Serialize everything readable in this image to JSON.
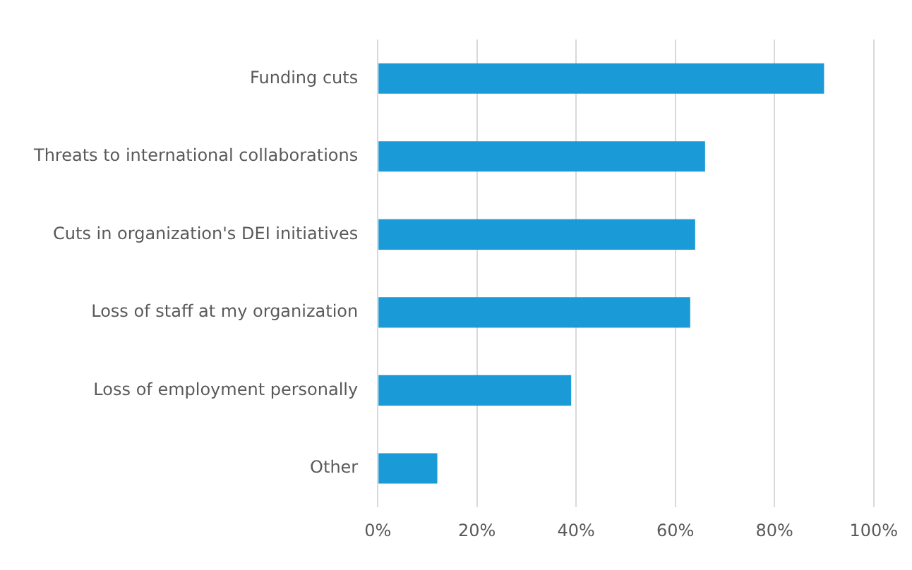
{
  "chart_data": {
    "type": "bar",
    "orientation": "horizontal",
    "categories": [
      "Funding cuts",
      "Threats to international collaborations",
      "Cuts in organization's DEI initiatives",
      "Loss of staff at my organization",
      "Loss of employment personally",
      "Other"
    ],
    "values": [
      90,
      66,
      64,
      63,
      39,
      12
    ],
    "color": "#1a9ad6",
    "xlim": [
      0,
      100
    ],
    "xticks": [
      {
        "value": 0,
        "label": "0%"
      },
      {
        "value": 20,
        "label": "20%"
      },
      {
        "value": 40,
        "label": "40%"
      },
      {
        "value": 60,
        "label": "60%"
      },
      {
        "value": 80,
        "label": "80%"
      },
      {
        "value": 100,
        "label": "100%"
      }
    ],
    "grid": "x",
    "legend": false
  }
}
